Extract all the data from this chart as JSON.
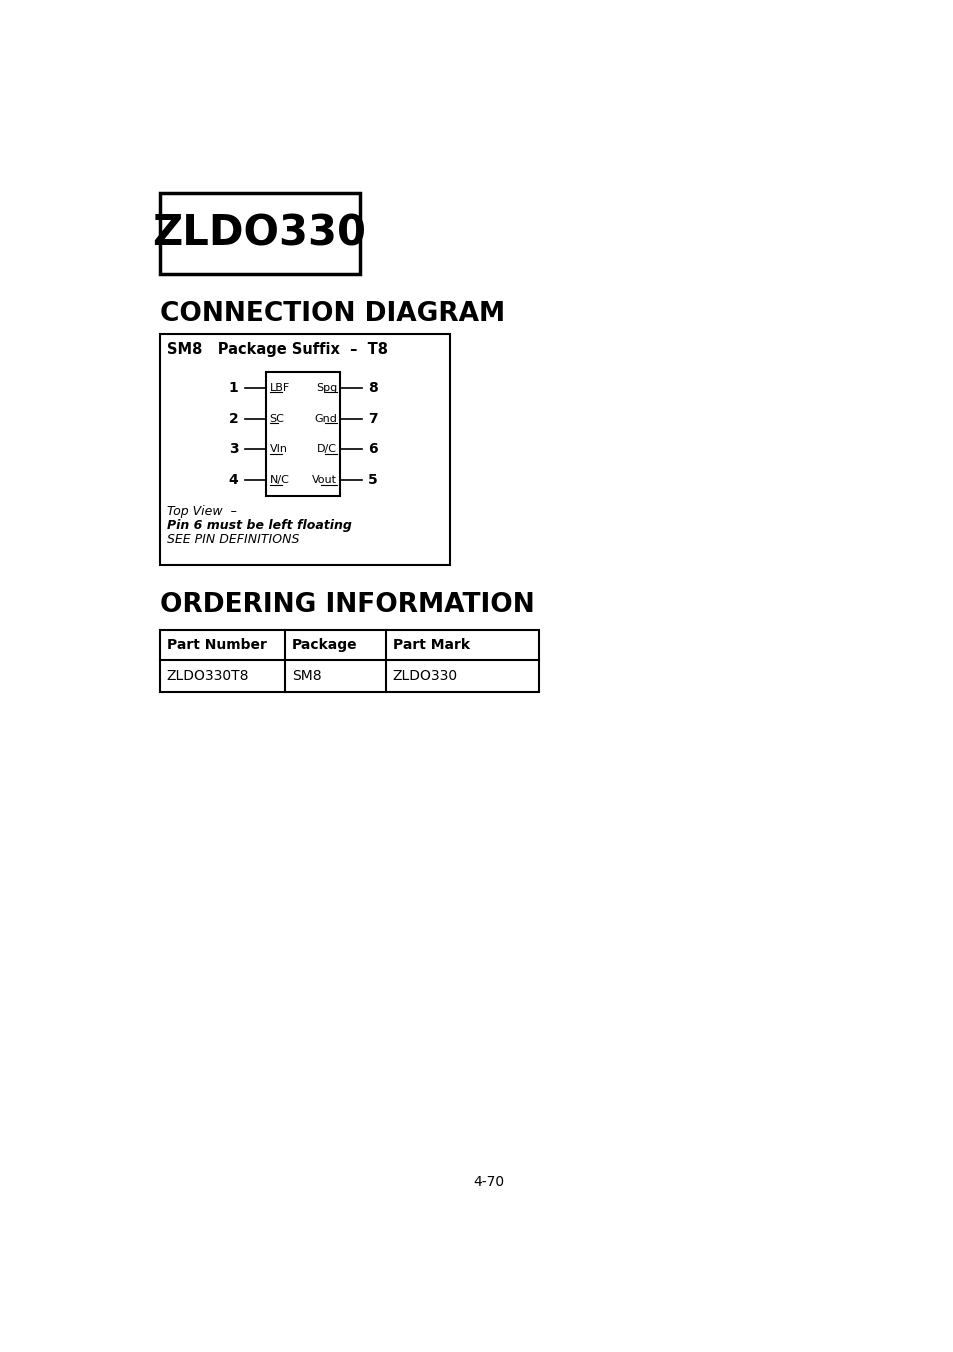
{
  "bg_color": "#ffffff",
  "title_box_text": "ZLDO330",
  "section1_title": "CONNECTION DIAGRAM",
  "section2_title": "ORDERING INFORMATION",
  "conn_box_title": "SM8   Package Suffix  –  T8",
  "left_pins": [
    {
      "num": "1",
      "label": "LBF"
    },
    {
      "num": "2",
      "label": "SC"
    },
    {
      "num": "3",
      "label": "VIn"
    },
    {
      "num": "4",
      "label": "N/C"
    }
  ],
  "right_pins": [
    {
      "num": "8",
      "label": "Spg"
    },
    {
      "num": "7",
      "label": "Gnd"
    },
    {
      "num": "6",
      "label": "D/C"
    },
    {
      "num": "5",
      "label": "Vout"
    }
  ],
  "note_line1": "Top View  –",
  "note_line2": "Pin 6 must be left floating",
  "note_line3": "SEE PIN DEFINITIONS",
  "table_headers": [
    "Part Number",
    "Package",
    "Part Mark"
  ],
  "table_row": [
    "ZLDO330T8",
    "SM8",
    "ZLDO330"
  ],
  "page_number": "4-70"
}
